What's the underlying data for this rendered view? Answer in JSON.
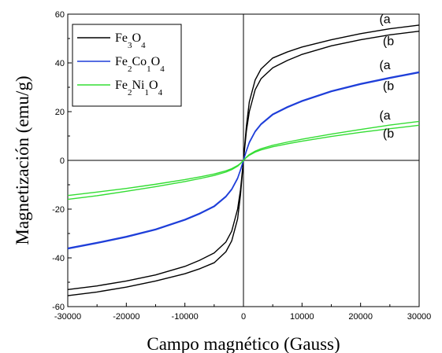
{
  "chart_data": {
    "type": "line",
    "xlabel": "Campo magnético (Gauss)",
    "ylabel": "Magnetización (emu/g)",
    "xlim": [
      -30000,
      30000
    ],
    "ylim": [
      -60,
      60
    ],
    "xticks": [
      "-30000",
      "-20000",
      "-10000",
      "0",
      "10000",
      "20000",
      "30000"
    ],
    "yticks": [
      "-60",
      "-40",
      "-20",
      "0",
      "20",
      "40",
      "60"
    ],
    "grid": false,
    "legend_position": "top-left",
    "legend": [
      {
        "parts": [
          [
            "Fe",
            ""
          ],
          [
            "3",
            "sub"
          ],
          [
            "O",
            ""
          ],
          [
            "4",
            "sub"
          ]
        ],
        "color": "#000000"
      },
      {
        "parts": [
          [
            "Fe",
            ""
          ],
          [
            "2",
            "sub"
          ],
          [
            "Co",
            ""
          ],
          [
            "1",
            "sub"
          ],
          [
            "O",
            ""
          ],
          [
            "4",
            "sub"
          ]
        ],
        "color": "#1f3fd9"
      },
      {
        "parts": [
          [
            "Fe",
            ""
          ],
          [
            "2",
            "sub"
          ],
          [
            "Ni",
            ""
          ],
          [
            "1",
            "sub"
          ],
          [
            "O",
            ""
          ],
          [
            "4",
            "sub"
          ]
        ],
        "color": "#33dd33"
      }
    ],
    "series": [
      {
        "label": "(a",
        "color": "#000000",
        "x": [
          0,
          500,
          1000,
          2000,
          3000,
          5000,
          7500,
          10000,
          15000,
          20000,
          25000,
          30000
        ],
        "y": [
          0,
          14,
          24,
          33,
          37.5,
          42,
          44.5,
          46.5,
          49.5,
          52,
          54,
          55.5
        ]
      },
      {
        "label": "(b",
        "color": "#000000",
        "x": [
          0,
          500,
          1000,
          2000,
          3000,
          5000,
          7500,
          10000,
          15000,
          20000,
          25000,
          30000
        ],
        "y": [
          0,
          12,
          20,
          29,
          33.5,
          38,
          41,
          43.5,
          47,
          49.5,
          51.5,
          53
        ]
      },
      {
        "label": "(a",
        "color": "#1f3fd9",
        "x": [
          0,
          500,
          1000,
          2000,
          3000,
          5000,
          7500,
          10000,
          15000,
          20000,
          25000,
          30000
        ],
        "y": [
          0,
          4,
          7.5,
          12,
          15,
          19,
          22,
          24.5,
          28.5,
          31.5,
          34,
          36.3
        ]
      },
      {
        "label": "(b",
        "color": "#1f3fd9",
        "x": [
          0,
          500,
          1000,
          2000,
          3000,
          5000,
          7500,
          10000,
          15000,
          20000,
          25000,
          30000
        ],
        "y": [
          0,
          3.8,
          7.2,
          11.7,
          14.7,
          18.7,
          21.7,
          24.2,
          28.2,
          31.2,
          33.7,
          36
        ]
      },
      {
        "label": "(a",
        "color": "#33dd33",
        "x": [
          0,
          500,
          1000,
          2000,
          3000,
          5000,
          7500,
          10000,
          15000,
          20000,
          25000,
          30000
        ],
        "y": [
          0,
          1.3,
          2.4,
          3.8,
          4.8,
          6.2,
          7.5,
          8.7,
          10.8,
          12.7,
          14.5,
          16
        ]
      },
      {
        "label": "(b",
        "color": "#33dd33",
        "x": [
          0,
          500,
          1000,
          2000,
          3000,
          5000,
          7500,
          10000,
          15000,
          20000,
          25000,
          30000
        ],
        "y": [
          0,
          1.2,
          2.1,
          3.4,
          4.3,
          5.6,
          6.8,
          7.9,
          9.8,
          11.5,
          13,
          14.4
        ]
      }
    ],
    "annotations": [
      {
        "text": "(a",
        "x": 23200,
        "y": 56.3
      },
      {
        "text": "(b",
        "x": 23800,
        "y": 47.2
      },
      {
        "text": "(a",
        "x": 23200,
        "y": 37.4
      },
      {
        "text": "(b",
        "x": 23800,
        "y": 28.8
      },
      {
        "text": "(a",
        "x": 23200,
        "y": 16.8
      },
      {
        "text": "(b",
        "x": 23800,
        "y": 9.4
      }
    ]
  }
}
